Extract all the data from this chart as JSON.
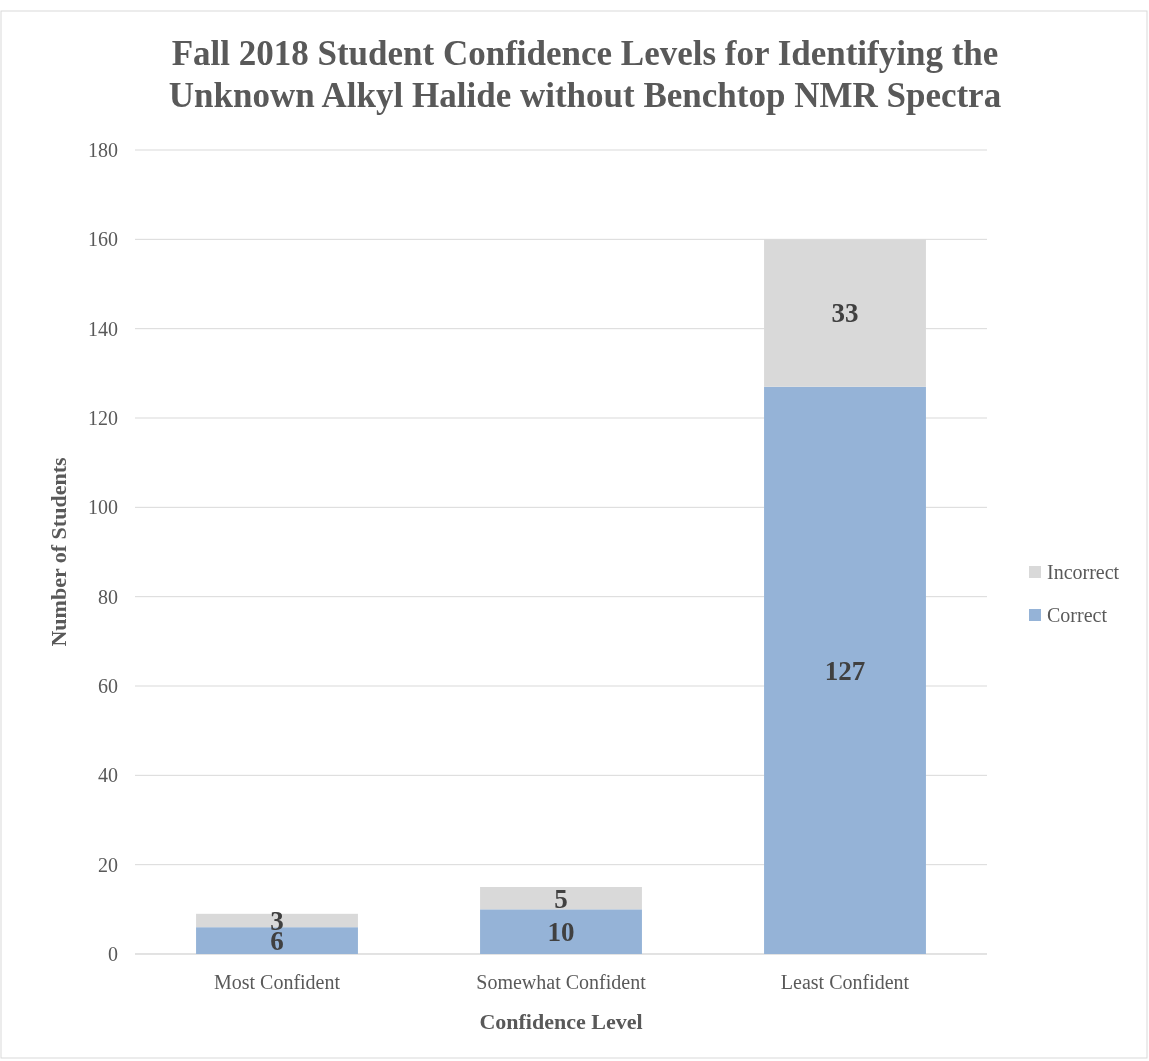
{
  "chart_data": {
    "type": "bar",
    "title": "Fall 2018 Student Confidence Levels for Identifying the Unknown Alkyl Halide without Benchtop NMR Spectra",
    "xlabel": "Confidence Level",
    "ylabel": "Number of Students",
    "categories": [
      "Most Confident",
      "Somewhat Confident",
      "Least Confident"
    ],
    "series": [
      {
        "name": "Correct",
        "color": "#95b3d7",
        "values": [
          6,
          10,
          127
        ]
      },
      {
        "name": "Incorrect",
        "color": "#d9d9d9",
        "values": [
          3,
          5,
          33
        ]
      }
    ],
    "stacked": true,
    "data_labels": true,
    "ylim": [
      0,
      180
    ],
    "yticks": [
      0,
      20,
      40,
      60,
      80,
      100,
      120,
      140,
      160,
      180
    ],
    "grid": "y",
    "legend": "right"
  }
}
